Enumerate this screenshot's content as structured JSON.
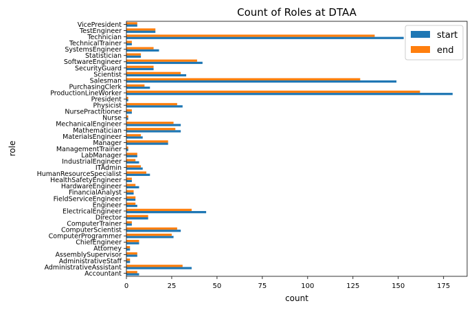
{
  "chart_data": {
    "type": "bar",
    "orientation": "horizontal",
    "title": "Count of Roles at DTAA",
    "xlabel": "count",
    "ylabel": "role",
    "xlim": [
      0,
      188
    ],
    "xticks": [
      0,
      25,
      50,
      75,
      100,
      125,
      150,
      175
    ],
    "grid": false,
    "legend_position": "top-right",
    "categories": [
      "VicePresident",
      "TestEngineer",
      "Technician",
      "TechnicalTrainer",
      "SystemsEngineer",
      "Statistician",
      "SoftwareEngineer",
      "SecurityGuard",
      "Scientist",
      "Salesman",
      "PurchasingClerk",
      "ProductionLineWorker",
      "President",
      "Physicist",
      "NursePractitioner",
      "Nurse",
      "MechanicalEngineer",
      "Mathematician",
      "MaterialsEngineer",
      "Manager",
      "ManagementTrainer",
      "LabManager",
      "IndustrialEngineer",
      "ITAdmin",
      "HumanResourceSpecialist",
      "HealthSafetyEngineer",
      "HardwareEngineer",
      "FinancialAnalyst",
      "FieldServiceEngineer",
      "Engineer",
      "ElectricalEngineer",
      "Director",
      "ComputerTrainer",
      "ComputerScientist",
      "ComputerProgrammer",
      "ChiefEngineer",
      "Attorney",
      "AssemblySupervisor",
      "AdministrativeStaff",
      "AdministrativeAssistant",
      "Accountant"
    ],
    "series": [
      {
        "name": "start",
        "color": "#1f77b4",
        "values": [
          6,
          16,
          153,
          3,
          18,
          8,
          42,
          15,
          33,
          149,
          13,
          180,
          1,
          31,
          3,
          1,
          30,
          30,
          9,
          23,
          1,
          6,
          7,
          9,
          13,
          3,
          7,
          4,
          5,
          6,
          44,
          12,
          3,
          30,
          26,
          7,
          2,
          6,
          2,
          36,
          7
        ]
      },
      {
        "name": "end",
        "color": "#ff7f0e",
        "values": [
          6,
          16,
          137,
          3,
          15,
          8,
          39,
          15,
          30,
          129,
          10,
          162,
          1,
          28,
          3,
          1,
          26,
          27,
          8,
          23,
          1,
          6,
          5,
          8,
          11,
          3,
          5,
          4,
          5,
          5,
          36,
          12,
          3,
          28,
          25,
          7,
          2,
          6,
          2,
          31,
          6
        ]
      }
    ]
  }
}
